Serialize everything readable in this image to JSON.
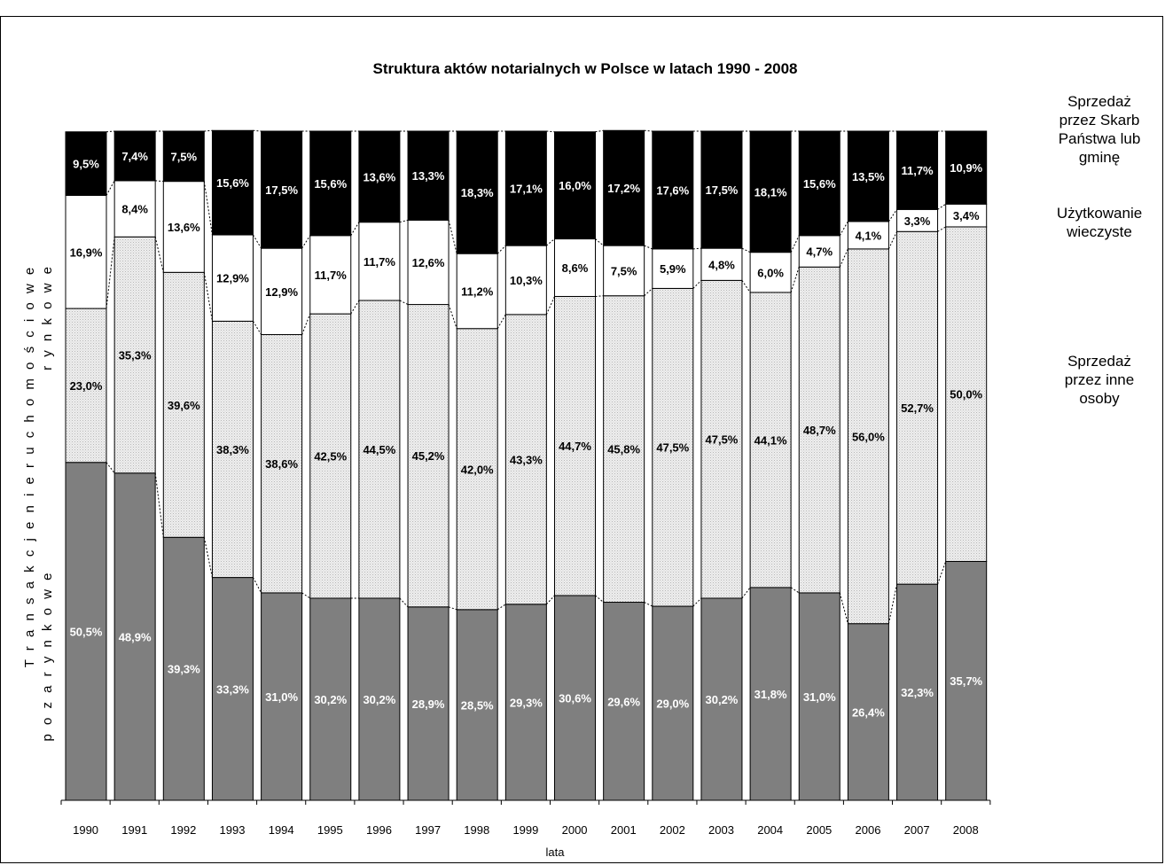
{
  "chart_data": {
    "type": "bar",
    "stacked": true,
    "normalized_percent": true,
    "title": "Struktura aktów notarialnych w Polsce w latach 1990 - 2008",
    "xlabel": "lata",
    "ylabel_line1": "T r a n s a k c j e   n i e r u c h o m o ś c i o w e",
    "ylabel_line2_top": "r y n k o w e",
    "ylabel_line2_bottom": "p o z a r y n k o w e",
    "categories": [
      "1990",
      "1991",
      "1992",
      "1993",
      "1994",
      "1995",
      "1996",
      "1997",
      "1998",
      "1999",
      "2000",
      "2001",
      "2002",
      "2003",
      "2004",
      "2005",
      "2006",
      "2007",
      "2008"
    ],
    "series": [
      {
        "key": "pozarynkowe",
        "color": "#7f7f7f",
        "label_color": "#ffffff",
        "values": [
          50.5,
          48.9,
          39.3,
          33.3,
          31.0,
          30.2,
          30.2,
          28.9,
          28.5,
          29.3,
          30.6,
          29.6,
          29.0,
          30.2,
          31.8,
          31.0,
          26.4,
          32.3,
          35.7
        ]
      },
      {
        "name": "Sprzedaż przez inne osoby",
        "key": "inne",
        "color": "#e3e3e3",
        "label_color": "#000000",
        "values": [
          23.0,
          35.3,
          39.6,
          38.3,
          38.6,
          42.5,
          44.5,
          45.2,
          42.0,
          43.3,
          44.7,
          45.8,
          47.5,
          47.5,
          44.1,
          48.7,
          56.0,
          52.7,
          50.0
        ]
      },
      {
        "name": "Użytkowanie wieczyste",
        "key": "uzytkowanie",
        "color": "#ffffff",
        "label_color": "#000000",
        "values": [
          16.9,
          8.4,
          13.6,
          12.9,
          12.9,
          11.7,
          11.7,
          12.6,
          11.2,
          10.3,
          8.6,
          7.5,
          5.9,
          4.8,
          6.0,
          4.7,
          4.1,
          3.3,
          3.4
        ]
      },
      {
        "name": "Sprzedaż przez Skarb Państwa lub gminę",
        "key": "skarb",
        "color": "#000000",
        "label_color": "#ffffff",
        "values": [
          9.5,
          7.4,
          7.5,
          15.6,
          17.5,
          15.6,
          13.6,
          13.3,
          18.3,
          17.1,
          16.0,
          17.2,
          17.6,
          17.5,
          18.1,
          15.6,
          13.5,
          11.7,
          10.9
        ]
      }
    ],
    "value_suffix": "%",
    "decimal_separator": ",",
    "ylim": [
      0,
      100
    ],
    "legend_position": "right",
    "legend_lines": [
      [
        "Sprzedaż",
        "przez Skarb",
        "Państwa lub",
        "gminę"
      ],
      [
        "Użytkowanie",
        "wieczyste"
      ],
      [
        "Sprzedaż",
        "przez inne",
        "osoby"
      ]
    ]
  }
}
